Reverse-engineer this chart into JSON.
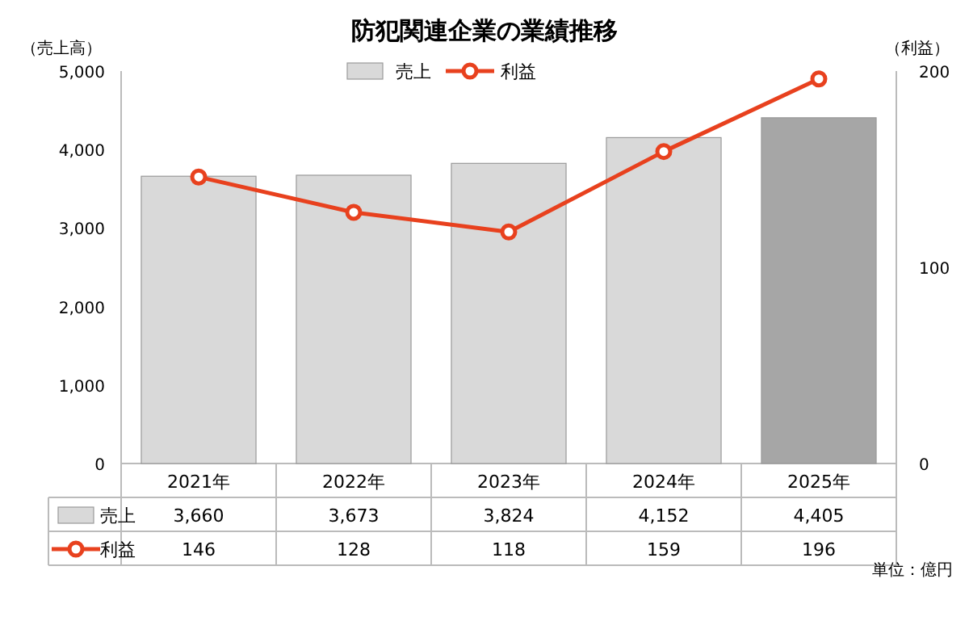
{
  "chart_data": {
    "type": "bar",
    "title": "防犯関連企業の業績推移",
    "ylabel": "（売上高）",
    "y2label": "（利益）",
    "categories": [
      "2021年",
      "2022年",
      "2023年",
      "2024年",
      "2025年"
    ],
    "series": [
      {
        "name": "売上",
        "color": "#d9d9d9",
        "colors": [
          "#d9d9d9",
          "#d9d9d9",
          "#d9d9d9",
          "#d9d9d9",
          "#a6a6a6"
        ],
        "values": [
          3660,
          3673,
          3824,
          4152,
          4405
        ],
        "value_labels": [
          "3,660",
          "3,673",
          "3,824",
          "4,152",
          "4,405"
        ]
      },
      {
        "name": "利益",
        "type": "line",
        "axis": "y2",
        "color": "#e8411e",
        "marker": "circle",
        "values": [
          146,
          128,
          118,
          159,
          196
        ],
        "value_labels": [
          "146",
          "128",
          "118",
          "159",
          "196"
        ]
      }
    ],
    "ylim": [
      0,
      5000
    ],
    "yticks": [
      0,
      {
        "value": 1000,
        "label": "1,000"
      },
      {
        "value": 2000,
        "label": "2,000"
      },
      {
        "value": 3000,
        "label": "3,000"
      },
      {
        "value": 4000,
        "label": "4,000"
      },
      {
        "value": 5000,
        "label": "5,000"
      }
    ],
    "y2lim": [
      0,
      200
    ],
    "y2ticks": [
      0,
      100,
      200
    ],
    "legend": "top",
    "grid": false,
    "annotations": [
      "単位：億円"
    ]
  }
}
